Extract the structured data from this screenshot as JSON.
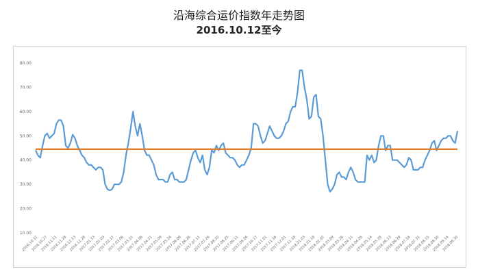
{
  "title": "沿海综合运价指数年走势图",
  "subtitle": "2016.10.12至今",
  "chart_data": {
    "type": "line",
    "ylim": [
      10,
      80
    ],
    "yticks": [
      "10.00",
      "20.00",
      "30.00",
      "40.00",
      "50.00",
      "60.00",
      "70.00",
      "80.00"
    ],
    "x_labels": [
      "2016.10.12",
      "2016.10.27",
      "2016.11.11",
      "2016.11.28",
      "2016.12.13",
      "2016.12.28",
      "2017.01.13",
      "2017.02.03",
      "2017.02.17",
      "2017.03.06",
      "2017.03.21",
      "2017.04.06",
      "2017.04.21",
      "2017.05.09",
      "2017.05.24",
      "2017.06.09",
      "2017.06.26",
      "2017.07.11",
      "2017.07.26",
      "2017.08.10",
      "2017.08.25",
      "2017.09.11",
      "2017.09.26",
      "2017.10.17",
      "2017.11.01",
      "2017.11.16",
      "2017.12.01",
      "2017.12.18",
      "2018.01.03",
      "2018.01.18",
      "2018.02.02",
      "2018.03.09",
      "2018.03.26",
      "2018.04.11",
      "2018.04.26",
      "2018.05.14",
      "2018.05.29",
      "2018.06.13",
      "2018.06.29",
      "2018.07.16",
      "2018.07.31",
      "2018.08.15",
      "2018.08.30",
      "2018.09.14",
      "2018.09.30"
    ],
    "grid": false,
    "legend": "none",
    "series": [
      {
        "color": "#5b9bd5",
        "values": [
          44,
          42,
          41,
          46,
          50,
          51,
          49,
          50,
          51,
          55,
          56.5,
          56.5,
          54,
          46,
          45,
          47,
          50.5,
          49,
          46,
          44,
          42,
          41,
          39,
          38,
          38,
          37,
          36,
          37,
          37,
          36,
          30,
          28,
          27.5,
          28,
          30,
          30,
          30,
          31,
          35,
          42,
          47,
          53,
          60,
          54,
          50,
          55,
          50,
          44,
          42,
          42,
          40,
          38,
          34,
          32,
          32,
          32,
          31,
          31,
          34,
          35,
          32,
          32,
          31,
          31,
          31,
          32,
          36,
          40,
          43,
          44,
          41,
          39,
          42,
          36,
          34,
          37,
          44,
          43,
          46,
          44,
          46,
          47,
          43,
          42,
          41,
          41,
          40,
          38,
          37,
          38,
          38,
          40,
          42,
          45,
          55,
          55,
          54,
          50,
          47,
          48,
          51,
          54,
          52,
          50,
          49,
          49,
          50,
          52,
          55,
          56,
          60,
          62,
          62,
          68,
          77,
          77,
          70,
          65,
          57,
          58,
          66,
          67,
          58,
          57,
          50,
          40,
          30,
          27,
          28,
          30,
          34,
          35,
          33,
          33,
          32,
          35,
          37,
          35,
          32,
          31,
          31,
          31,
          31,
          42,
          40,
          42,
          39,
          40,
          46,
          50,
          50,
          44,
          46,
          46,
          40,
          40,
          40,
          39,
          38,
          37,
          38,
          41,
          40,
          36,
          36,
          36,
          37,
          37,
          40,
          42,
          44,
          47,
          48,
          44,
          46,
          48,
          49,
          49,
          50,
          50,
          48,
          47,
          52
        ]
      },
      {
        "color": "#e07b28",
        "values": [
          44.5,
          44.5
        ]
      }
    ]
  }
}
